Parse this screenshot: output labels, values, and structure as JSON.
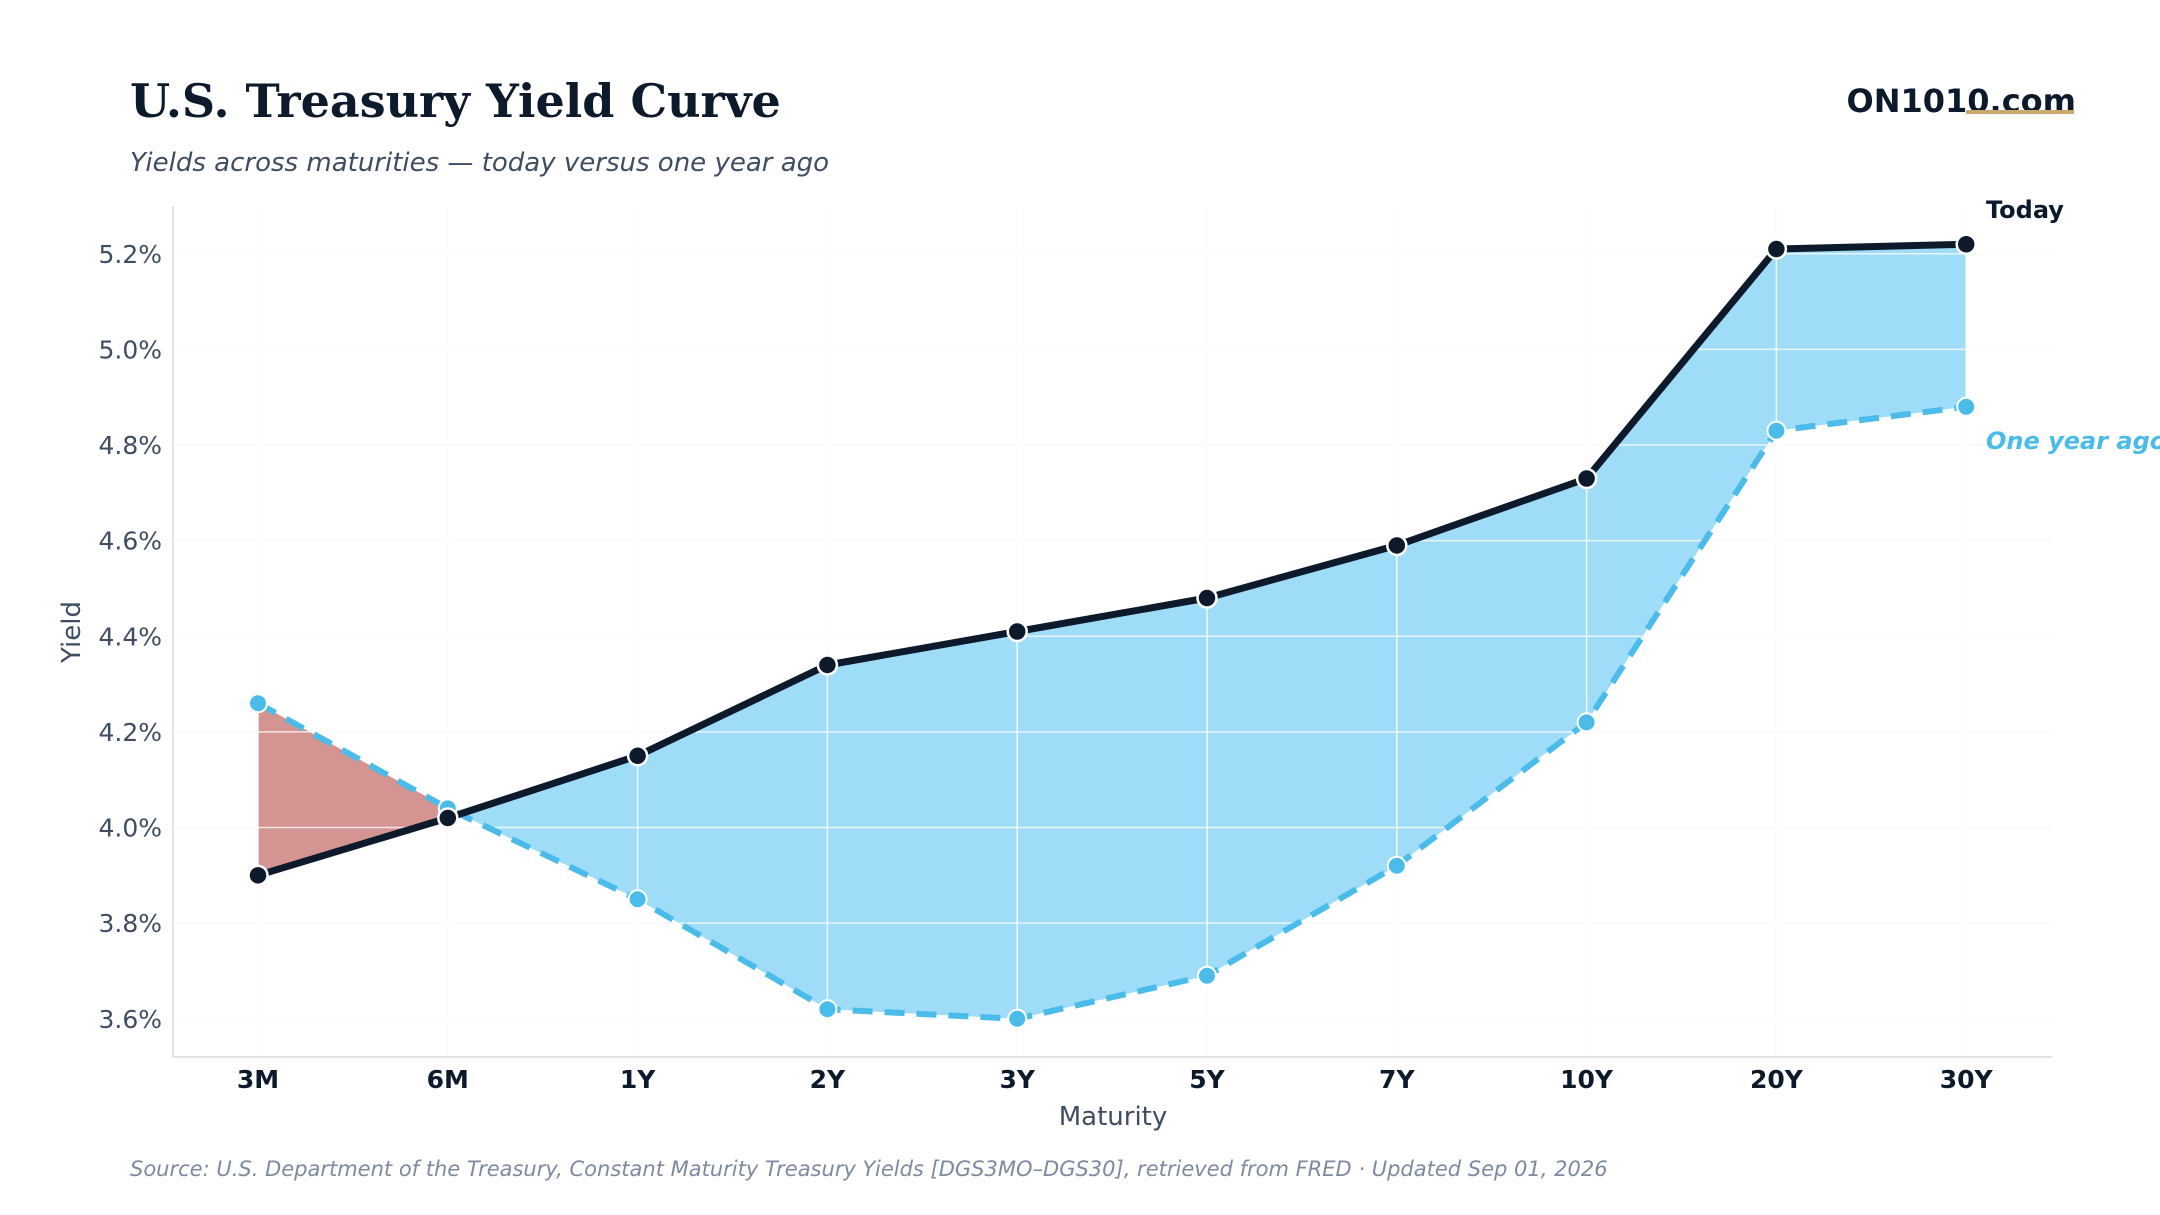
{
  "header": {
    "title": "U.S. Treasury Yield Curve",
    "subtitle": "Yields across maturities — today versus one year ago",
    "brand": "ON1010.com"
  },
  "footer": {
    "source": "Source: U.S. Department of the Treasury, Constant Maturity Treasury Yields [DGS3MO–DGS30], retrieved from FRED · Updated Sep 01, 2026"
  },
  "chart_data": {
    "type": "line",
    "title": "U.S. Treasury Yield Curve",
    "subtitle": "Yields across maturities — today versus one year ago",
    "xlabel": "Maturity",
    "ylabel": "Yield",
    "categories": [
      "3M",
      "6M",
      "1Y",
      "2Y",
      "3Y",
      "5Y",
      "7Y",
      "10Y",
      "20Y",
      "30Y"
    ],
    "series": [
      {
        "name": "Today",
        "values": [
          3.9,
          4.02,
          4.15,
          4.34,
          4.41,
          4.48,
          4.59,
          4.73,
          5.21,
          5.22
        ],
        "color": "#0d1a2b",
        "style": "solid"
      },
      {
        "name": "One year ago",
        "values": [
          4.26,
          4.04,
          3.85,
          3.62,
          3.6,
          3.69,
          3.92,
          4.22,
          4.83,
          4.88
        ],
        "color": "#4bbcea",
        "style": "dashed"
      }
    ],
    "yticks": [
      "3.6%",
      "3.8%",
      "4.0%",
      "4.2%",
      "4.4%",
      "4.6%",
      "4.8%",
      "5.0%",
      "5.2%"
    ],
    "ytick_values": [
      3.6,
      3.8,
      4.0,
      4.2,
      4.4,
      4.6,
      4.8,
      5.0,
      5.2
    ],
    "ylim": [
      3.52,
      5.3
    ],
    "fill_colors": {
      "today_above": "#9fdcf8",
      "today_below": "#d49492"
    },
    "grid": true,
    "legend": "direct labels at right end of lines"
  }
}
